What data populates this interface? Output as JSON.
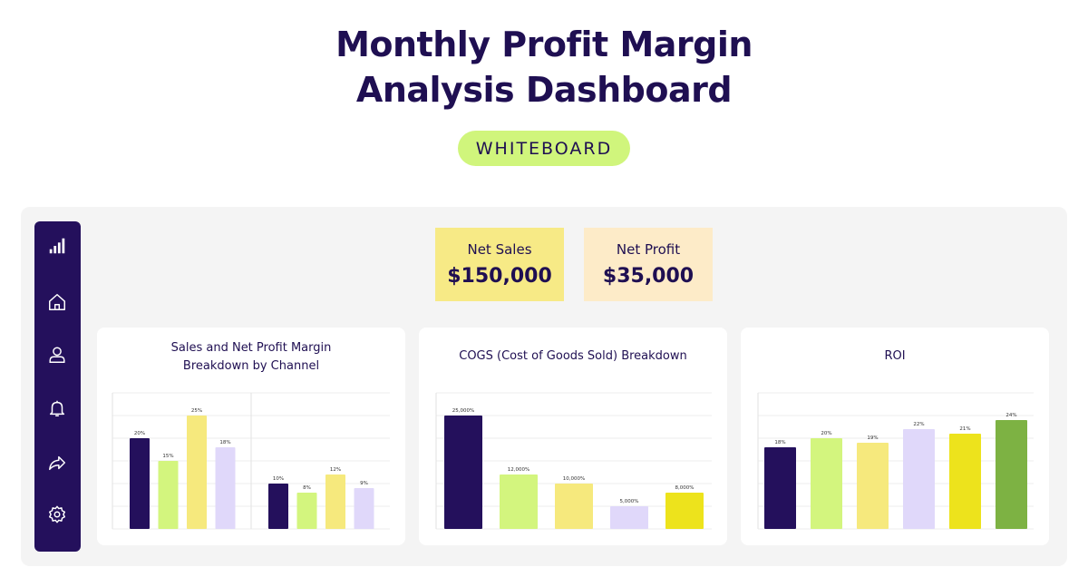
{
  "title": {
    "line1": "Monthly Profit Margin",
    "line2": "Analysis Dashboard"
  },
  "badge": "WHITEBOARD",
  "sidebar": {
    "items": [
      {
        "icon": "bar-chart-icon"
      },
      {
        "icon": "home-icon"
      },
      {
        "icon": "user-icon"
      },
      {
        "icon": "bell-icon"
      },
      {
        "icon": "share-icon"
      },
      {
        "icon": "gear-icon"
      }
    ]
  },
  "kpis": [
    {
      "label": "Net Sales",
      "value": "$150,000",
      "color": "#f7ea86"
    },
    {
      "label": "Net Profit",
      "value": "$35,000",
      "color": "#fdebc8"
    }
  ],
  "colors": {
    "navy": "#24105c",
    "lime": "#d3f57e",
    "yellow": "#f6e97d",
    "lavender": "#e0d8fa",
    "gold": "#ede31c",
    "green": "#7db243"
  },
  "chart_data": [
    {
      "type": "bar",
      "title_line1": "Sales and Net Profit Margin",
      "title_line2": "Breakdown by Channel",
      "ylim": [
        0,
        30
      ],
      "groups": [
        {
          "values": [
            20,
            15,
            25,
            18
          ],
          "labels": [
            "20%",
            "15%",
            "25%",
            "18%"
          ]
        },
        {
          "values": [
            10,
            8,
            12,
            9
          ],
          "labels": [
            "10%",
            "8%",
            "12%",
            "9%"
          ]
        }
      ],
      "colors": [
        "#24105c",
        "#d3f57e",
        "#f6e97d",
        "#e0d8fa"
      ]
    },
    {
      "type": "bar",
      "title": "COGS (Cost of Goods Sold) Breakdown",
      "ylim": [
        0,
        30000
      ],
      "values": [
        25000,
        12000,
        10000,
        5000,
        8000
      ],
      "labels": [
        "25,000%",
        "12,000%",
        "10,000%",
        "5,000%",
        "8,000%"
      ],
      "colors": [
        "#24105c",
        "#d3f57e",
        "#f6e97d",
        "#e0d8fa",
        "#ede31c"
      ]
    },
    {
      "type": "bar",
      "title": "ROI",
      "ylim": [
        0,
        30
      ],
      "values": [
        18,
        20,
        19,
        22,
        21,
        24
      ],
      "labels": [
        "18%",
        "20%",
        "19%",
        "22%",
        "21%",
        "24%"
      ],
      "colors": [
        "#24105c",
        "#d3f57e",
        "#f6e97d",
        "#e0d8fa",
        "#ede31c",
        "#7db243"
      ]
    }
  ]
}
